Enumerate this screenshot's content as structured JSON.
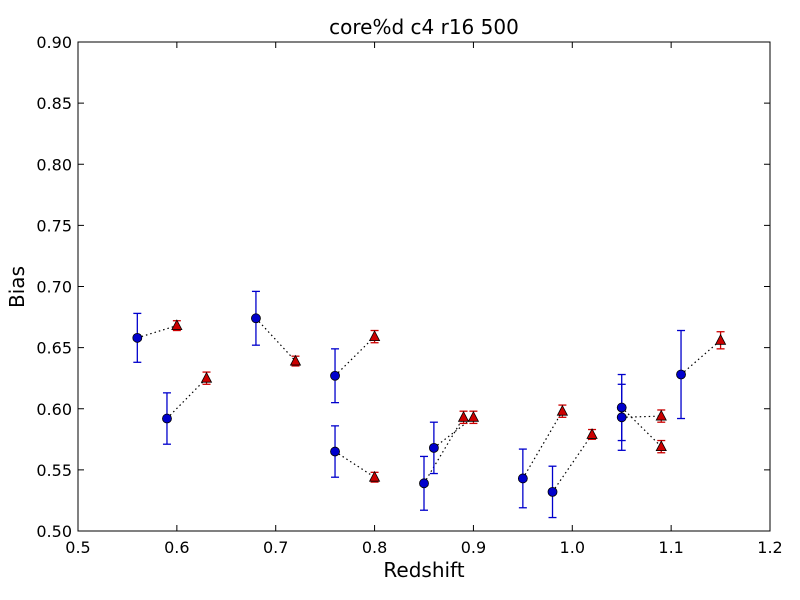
{
  "chart_data": {
    "type": "scatter",
    "title": "core%d c4 r16 500",
    "xlabel": "Redshift",
    "ylabel": "Bias",
    "xlim": [
      0.5,
      1.2
    ],
    "ylim": [
      0.5,
      0.9
    ],
    "x_ticks": [
      "0.5",
      "0.6",
      "0.7",
      "0.8",
      "0.9",
      "1.0",
      "1.1",
      "1.2"
    ],
    "y_ticks": [
      "0.50",
      "0.55",
      "0.60",
      "0.65",
      "0.70",
      "0.75",
      "0.80",
      "0.85",
      "0.90"
    ],
    "grid": false,
    "series": [
      {
        "marker": "circle",
        "color": "#0000cc",
        "points": [
          {
            "x": 0.56,
            "y": 0.658,
            "err": 0.02
          },
          {
            "x": 0.59,
            "y": 0.592,
            "err": 0.021
          },
          {
            "x": 0.68,
            "y": 0.674,
            "err": 0.022
          },
          {
            "x": 0.76,
            "y": 0.627,
            "err": 0.022
          },
          {
            "x": 0.76,
            "y": 0.565,
            "err": 0.021
          },
          {
            "x": 0.85,
            "y": 0.539,
            "err": 0.022
          },
          {
            "x": 0.86,
            "y": 0.568,
            "err": 0.021
          },
          {
            "x": 0.95,
            "y": 0.543,
            "err": 0.024
          },
          {
            "x": 0.98,
            "y": 0.532,
            "err": 0.021
          },
          {
            "x": 1.05,
            "y": 0.601,
            "err": 0.027
          },
          {
            "x": 1.05,
            "y": 0.593,
            "err": 0.027
          },
          {
            "x": 1.11,
            "y": 0.628,
            "err": 0.036
          }
        ]
      },
      {
        "marker": "triangle",
        "color": "#cc0000",
        "points": [
          {
            "x": 0.6,
            "y": 0.668,
            "err": 0.004
          },
          {
            "x": 0.63,
            "y": 0.625,
            "err": 0.005
          },
          {
            "x": 0.72,
            "y": 0.639,
            "err": 0.004
          },
          {
            "x": 0.8,
            "y": 0.659,
            "err": 0.005
          },
          {
            "x": 0.8,
            "y": 0.544,
            "err": 0.004
          },
          {
            "x": 0.89,
            "y": 0.593,
            "err": 0.005
          },
          {
            "x": 0.9,
            "y": 0.593,
            "err": 0.005
          },
          {
            "x": 0.99,
            "y": 0.598,
            "err": 0.005
          },
          {
            "x": 1.02,
            "y": 0.579,
            "err": 0.004
          },
          {
            "x": 1.09,
            "y": 0.569,
            "err": 0.005
          },
          {
            "x": 1.09,
            "y": 0.594,
            "err": 0.005
          },
          {
            "x": 1.15,
            "y": 0.656,
            "err": 0.007
          }
        ]
      }
    ],
    "connectors": [
      [
        0.56,
        0.658,
        0.6,
        0.668
      ],
      [
        0.59,
        0.592,
        0.63,
        0.625
      ],
      [
        0.68,
        0.674,
        0.72,
        0.639
      ],
      [
        0.76,
        0.627,
        0.8,
        0.659
      ],
      [
        0.76,
        0.565,
        0.8,
        0.544
      ],
      [
        0.85,
        0.539,
        0.89,
        0.593
      ],
      [
        0.86,
        0.568,
        0.9,
        0.593
      ],
      [
        0.95,
        0.543,
        0.99,
        0.598
      ],
      [
        0.98,
        0.532,
        1.02,
        0.579
      ],
      [
        1.05,
        0.601,
        1.09,
        0.569
      ],
      [
        1.05,
        0.593,
        1.09,
        0.594
      ],
      [
        1.11,
        0.628,
        1.15,
        0.656
      ]
    ]
  }
}
